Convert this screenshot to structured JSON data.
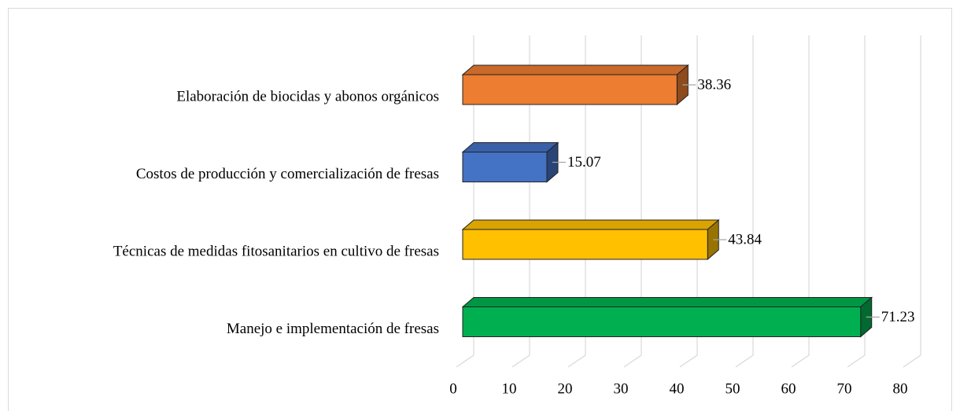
{
  "chart_data": {
    "type": "bar",
    "orientation": "horizontal",
    "categories": [
      "Elaboración de biocidas y abonos orgánicos",
      "Costos de producción y comercialización de fresas",
      "Técnicas de medidas fitosanitarios en cultivo de fresas",
      "Manejo e implementación de fresas"
    ],
    "values": [
      38.36,
      15.07,
      43.84,
      71.23
    ],
    "colors": [
      "#ED7D31",
      "#4472C4",
      "#FFC000",
      "#00B050"
    ],
    "xlim": [
      0,
      80
    ],
    "xticks": [
      0,
      10,
      20,
      30,
      40,
      50,
      60,
      70,
      80
    ],
    "grid": true
  }
}
